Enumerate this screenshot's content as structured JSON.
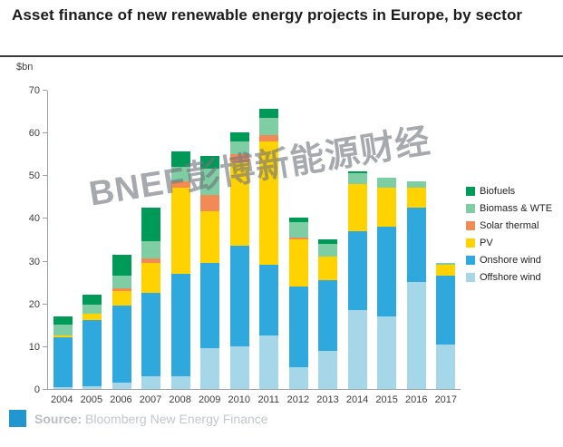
{
  "header": {
    "title": "Asset finance of new renewable energy projects in Europe, by sector"
  },
  "axis": {
    "unit_label": "$bn"
  },
  "watermark": {
    "text": "BNEF彭博新能源财经"
  },
  "footer": {
    "source_label": "Source:",
    "source_text": " Bloomberg New Energy Finance"
  },
  "colors": {
    "source_square": "#2196cf",
    "axis_line": "#9aa0a6"
  },
  "chart_data": {
    "type": "bar",
    "stacked": true,
    "title": "Asset finance of new renewable energy projects in Europe, by sector",
    "ylabel": "$bn",
    "xlabel": "",
    "ylim": [
      0,
      70
    ],
    "yticks": [
      0,
      10,
      20,
      30,
      40,
      50,
      60,
      70
    ],
    "grid": false,
    "legend_position": "right",
    "categories": [
      "2004",
      "2005",
      "2006",
      "2007",
      "2008",
      "2009",
      "2010",
      "2011",
      "2012",
      "2013",
      "2014",
      "2015",
      "2016",
      "2017"
    ],
    "series": [
      {
        "name": "Offshore wind",
        "color": "#a5d7e8",
        "values": [
          0.5,
          0.7,
          1.5,
          3,
          3,
          9.5,
          10,
          12.5,
          5,
          9,
          18.5,
          17,
          25,
          10.5
        ]
      },
      {
        "name": "Onshore wind",
        "color": "#2fa8de",
        "values": [
          11.5,
          15.5,
          18,
          19.5,
          24,
          20,
          23.5,
          16.5,
          19,
          16.5,
          18.5,
          21,
          17.5,
          16
        ]
      },
      {
        "name": "PV",
        "color": "#ffd200",
        "values": [
          0.5,
          1.5,
          3.5,
          7,
          20,
          12,
          19.5,
          29,
          11,
          5.5,
          11,
          9,
          4.5,
          2.5
        ]
      },
      {
        "name": "Solar thermal",
        "color": "#f18a55",
        "values": [
          0,
          0,
          0.5,
          1,
          1.5,
          4,
          2,
          1.5,
          0.5,
          0,
          0,
          0,
          0,
          0
        ]
      },
      {
        "name": "Biomass & WTE",
        "color": "#7fcda2",
        "values": [
          2.5,
          2,
          3,
          4,
          3.5,
          6,
          3,
          4,
          3.5,
          3,
          2.5,
          2.5,
          1.5,
          0.5
        ]
      },
      {
        "name": "Biofuels",
        "color": "#009a58",
        "values": [
          2,
          2.3,
          5,
          8,
          3.5,
          3,
          2,
          2,
          1,
          1,
          0.5,
          0,
          0,
          0
        ]
      }
    ]
  }
}
